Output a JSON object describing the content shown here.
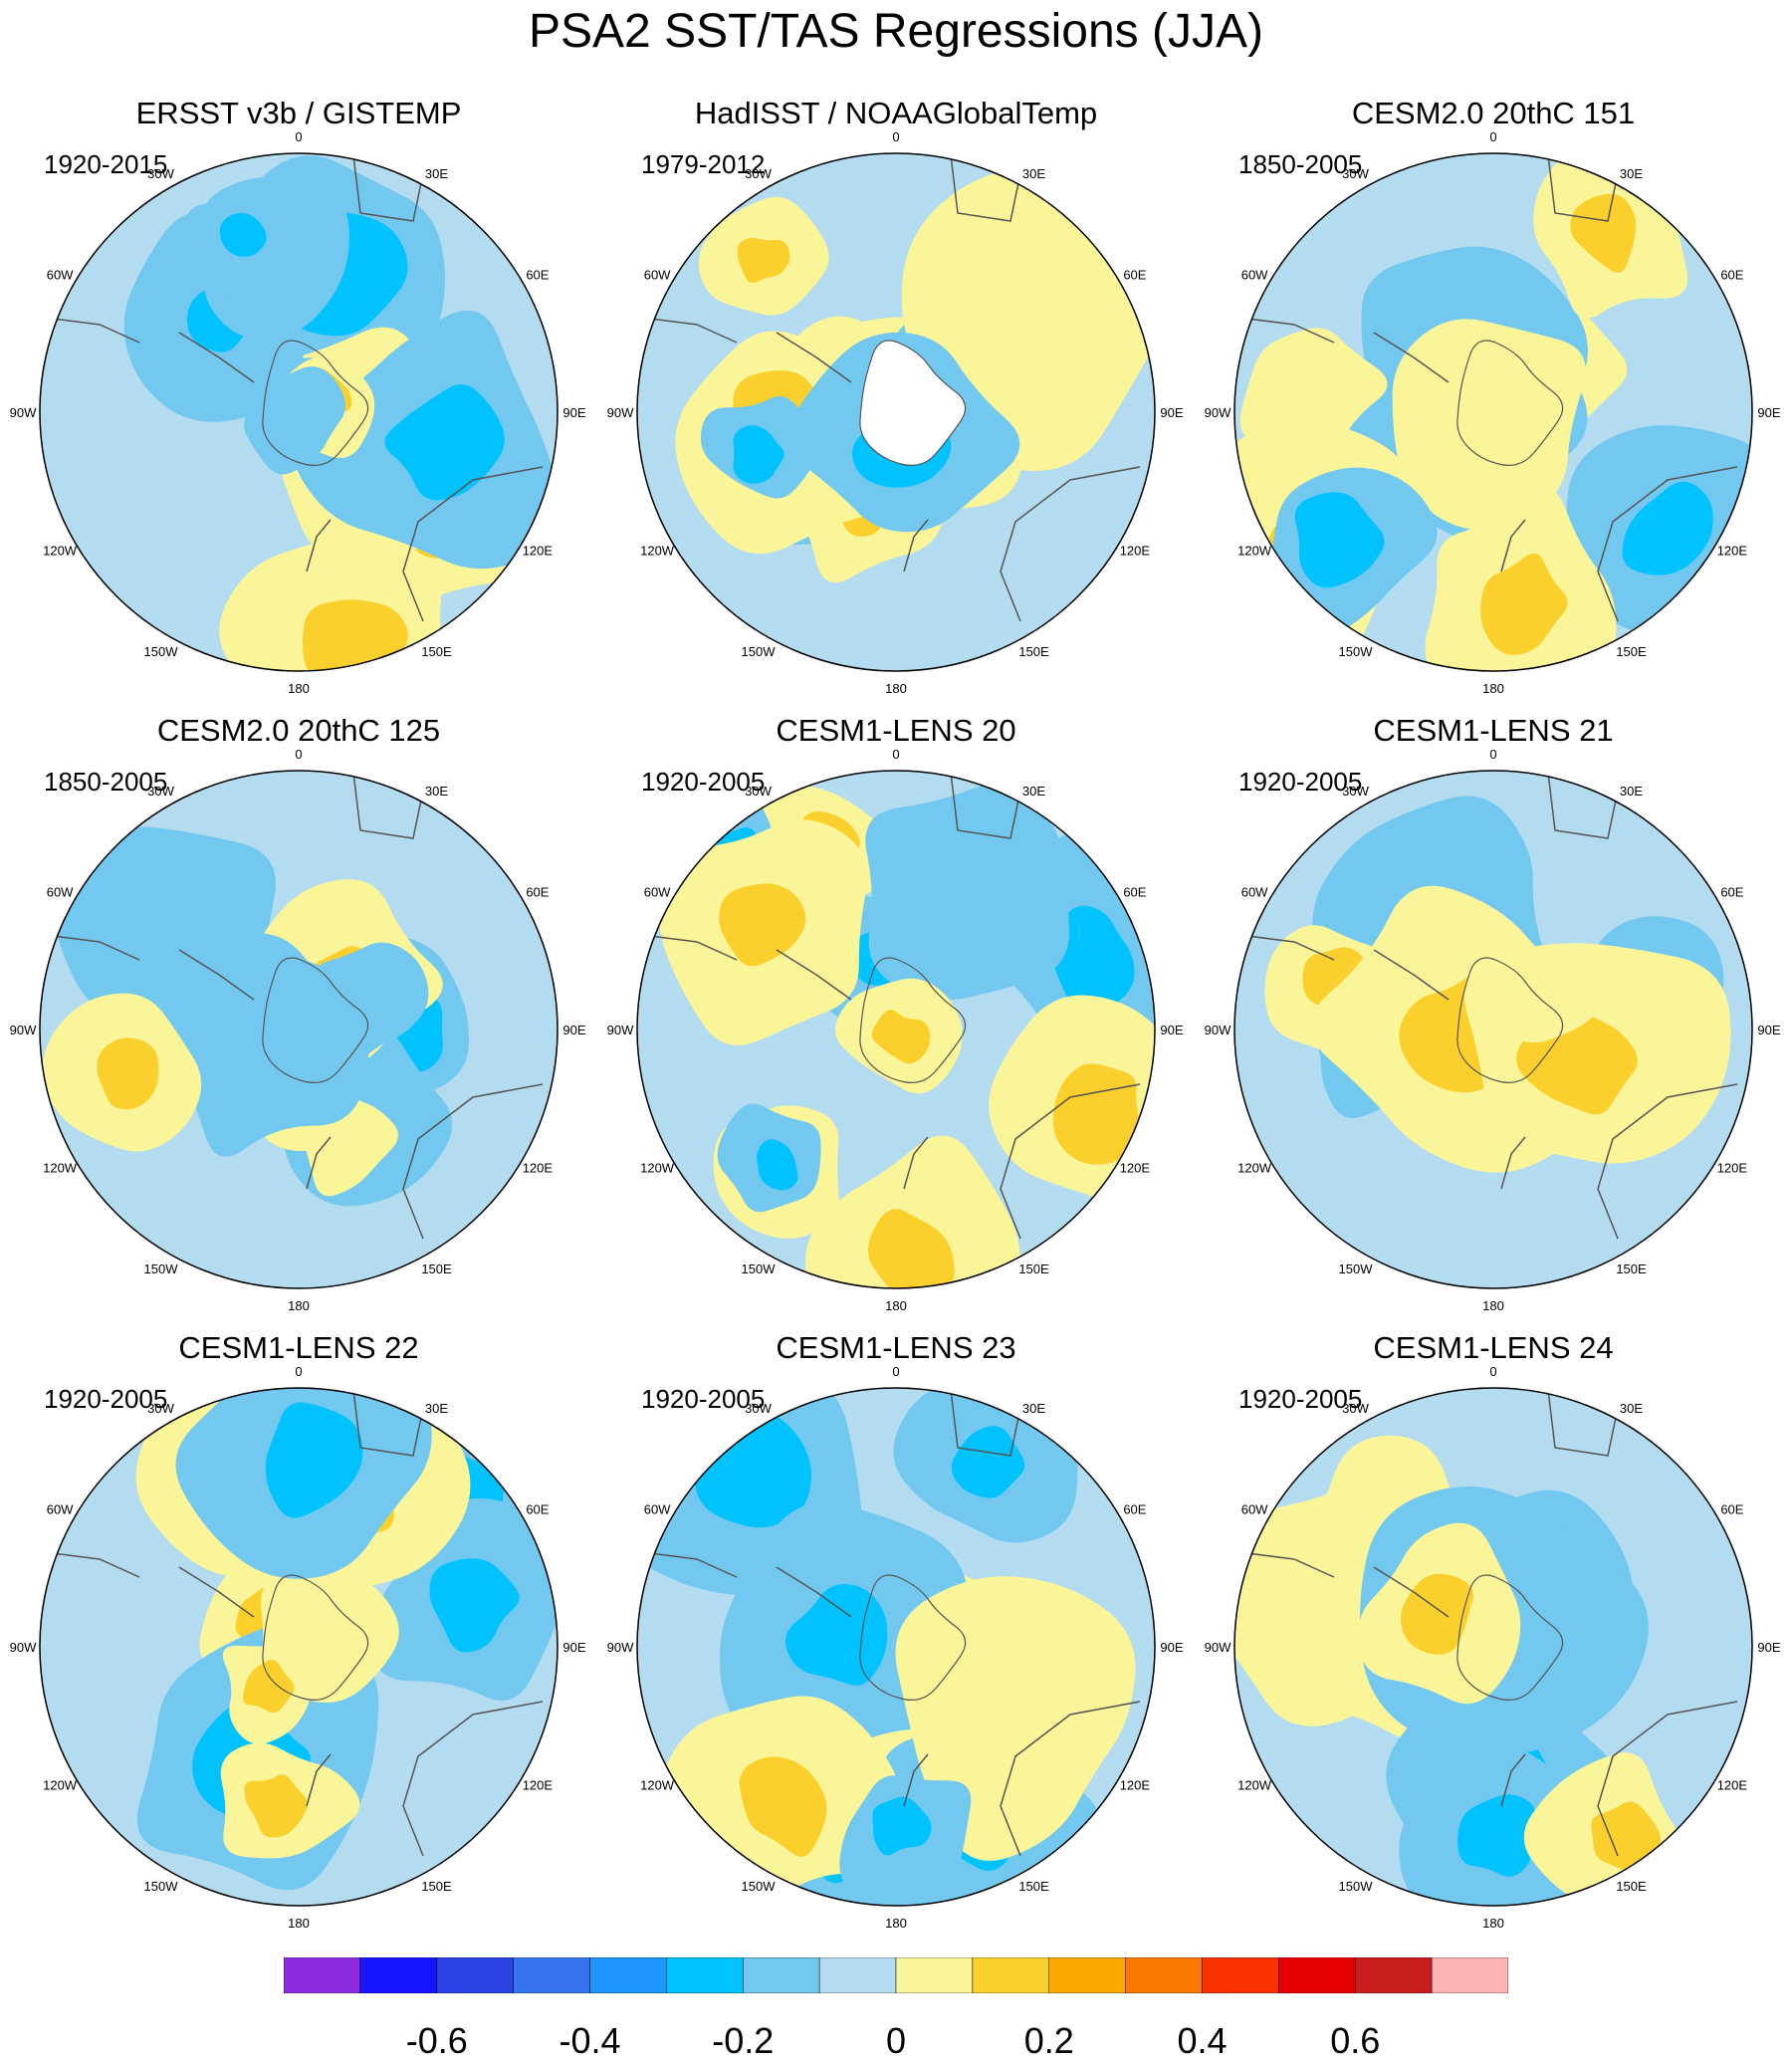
{
  "title": "PSA2 SST/TAS Regressions (JJA)",
  "panels": [
    {
      "title": "ERSST v3b / GISTEMP",
      "period": "1920-2015",
      "style": "obs",
      "seed": 3
    },
    {
      "title": "HadISST / NOAAGlobalTemp",
      "period": "1979-2012",
      "style": "obs2",
      "seed": 7
    },
    {
      "title": "CESM2.0 20thC 151",
      "period": "1850-2005",
      "style": "model",
      "seed": 11
    },
    {
      "title": "CESM2.0 20thC 125",
      "period": "1850-2005",
      "style": "model",
      "seed": 19
    },
    {
      "title": "CESM1-LENS 20",
      "period": "1920-2005",
      "style": "model",
      "seed": 23
    },
    {
      "title": "CESM1-LENS 21",
      "period": "1920-2005",
      "style": "model",
      "seed": 29
    },
    {
      "title": "CESM1-LENS 22",
      "period": "1920-2005",
      "style": "model",
      "seed": 31
    },
    {
      "title": "CESM1-LENS 23",
      "period": "1920-2005",
      "style": "model",
      "seed": 37
    },
    {
      "title": "CESM1-LENS 24",
      "period": "1920-2005",
      "style": "model",
      "seed": 41
    }
  ],
  "longitude_labels": [
    "0",
    "30E",
    "60E",
    "90E",
    "120E",
    "150E",
    "180",
    "150W",
    "120W",
    "90W",
    "60W",
    "30W"
  ],
  "colorbar": {
    "colors": [
      "#8a2be2",
      "#1515ff",
      "#2a44e6",
      "#3573f0",
      "#1e96ff",
      "#00c2ff",
      "#73c8f0",
      "#b3dcf0",
      "#fbf59a",
      "#fbd02c",
      "#fba800",
      "#fb7800",
      "#fa3200",
      "#e60000",
      "#c81e1e",
      "#ffb4b4"
    ],
    "tick_labels": [
      "-0.6",
      "-0.4",
      "-0.2",
      "0",
      "0.2",
      "0.4",
      "0.6"
    ]
  }
}
